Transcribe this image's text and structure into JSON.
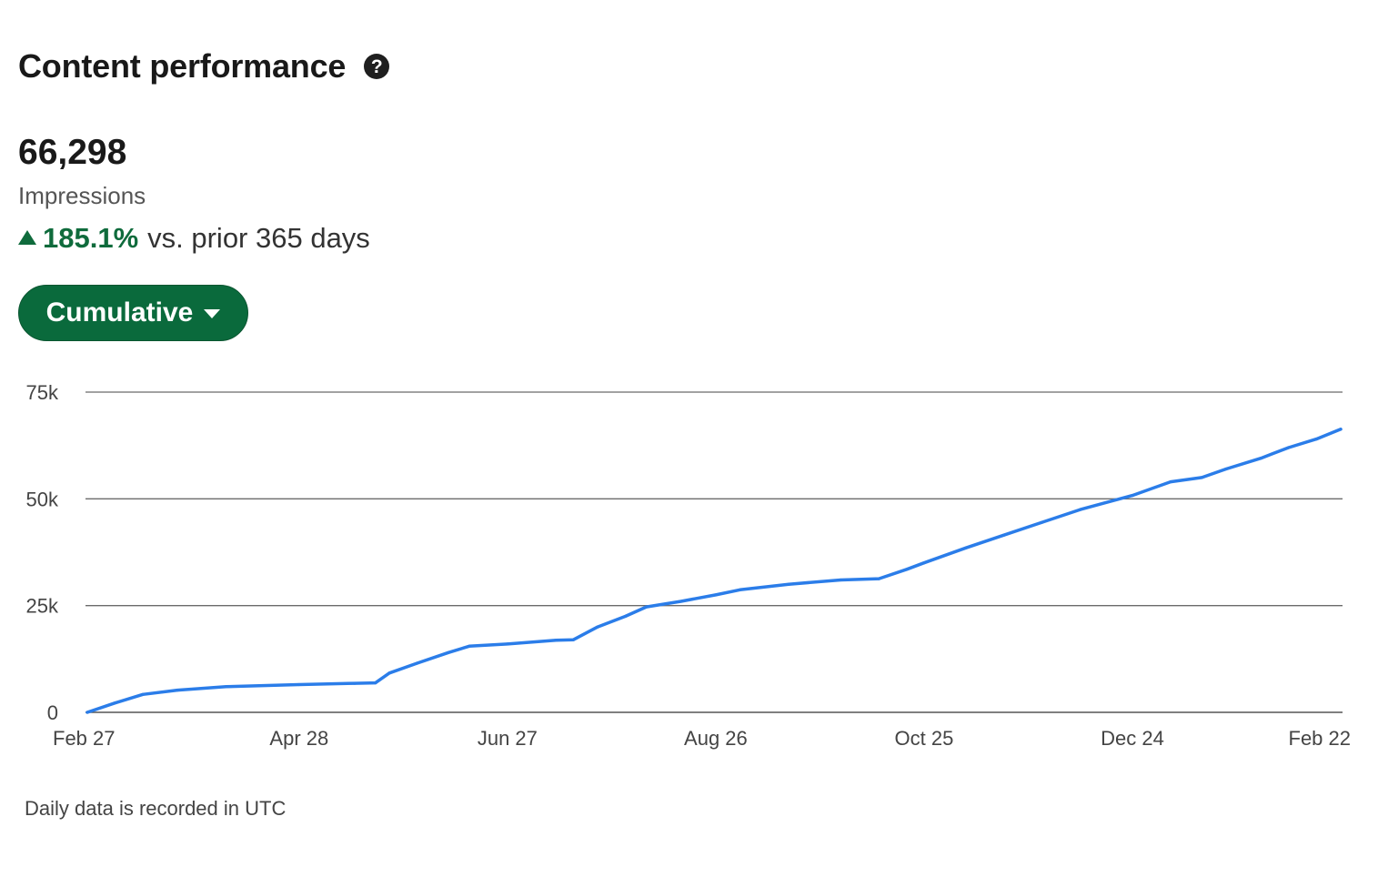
{
  "card": {
    "title": "Content performance",
    "help_icon": "question-circle-icon",
    "metric": {
      "value": "66,298",
      "label": "Impressions"
    },
    "change": {
      "icon": "triangle-up-icon",
      "percent": "185.1%",
      "text": "vs. prior 365 days",
      "color": "#0f6b3c"
    },
    "filter": {
      "label": "Cumulative",
      "icon": "caret-down-icon",
      "color": "#0a6a3c"
    },
    "footnote": "Daily data is recorded in UTC"
  },
  "chart_data": {
    "type": "line",
    "title": "",
    "xlabel": "",
    "ylabel": "",
    "ylim": [
      0,
      75000
    ],
    "yticks": [
      0,
      25000,
      50000,
      75000
    ],
    "ytick_labels": [
      "0",
      "25k",
      "50k",
      "75k"
    ],
    "x_start": "2024-02-27",
    "x_end": "2025-02-22",
    "xticks": [
      "2024-02-27",
      "2024-04-28",
      "2024-06-27",
      "2024-08-26",
      "2024-10-25",
      "2024-12-24",
      "2025-02-22"
    ],
    "xtick_labels": [
      "Feb 27",
      "Apr 28",
      "Jun 27",
      "Aug 26",
      "Oct 25",
      "Dec 24",
      "Feb 22"
    ],
    "grid": true,
    "line_color": "#2b7de9",
    "series": [
      {
        "name": "",
        "points": [
          [
            "2024-02-27",
            0
          ],
          [
            "2024-03-06",
            2200
          ],
          [
            "2024-03-14",
            4200
          ],
          [
            "2024-03-24",
            5200
          ],
          [
            "2024-04-07",
            6000
          ],
          [
            "2024-04-28",
            6500
          ],
          [
            "2024-05-14",
            6800
          ],
          [
            "2024-05-20",
            6900
          ],
          [
            "2024-05-24",
            9200
          ],
          [
            "2024-06-01",
            11500
          ],
          [
            "2024-06-10",
            14000
          ],
          [
            "2024-06-16",
            15500
          ],
          [
            "2024-06-27",
            16000
          ],
          [
            "2024-07-11",
            16900
          ],
          [
            "2024-07-16",
            17000
          ],
          [
            "2024-07-23",
            20000
          ],
          [
            "2024-07-31",
            22500
          ],
          [
            "2024-08-06",
            24700
          ],
          [
            "2024-08-16",
            26000
          ],
          [
            "2024-08-26",
            27500
          ],
          [
            "2024-09-02",
            28700
          ],
          [
            "2024-09-16",
            30000
          ],
          [
            "2024-10-01",
            31000
          ],
          [
            "2024-10-12",
            31300
          ],
          [
            "2024-10-20",
            33500
          ],
          [
            "2024-10-25",
            35000
          ],
          [
            "2024-11-06",
            38500
          ],
          [
            "2024-11-17",
            41500
          ],
          [
            "2024-11-28",
            44500
          ],
          [
            "2024-12-09",
            47500
          ],
          [
            "2024-12-24",
            50800
          ],
          [
            "2025-01-04",
            54000
          ],
          [
            "2025-01-13",
            55000
          ],
          [
            "2025-01-20",
            57000
          ],
          [
            "2025-01-30",
            59500
          ],
          [
            "2025-02-07",
            62000
          ],
          [
            "2025-02-15",
            64000
          ],
          [
            "2025-02-22",
            66298
          ]
        ]
      }
    ]
  }
}
